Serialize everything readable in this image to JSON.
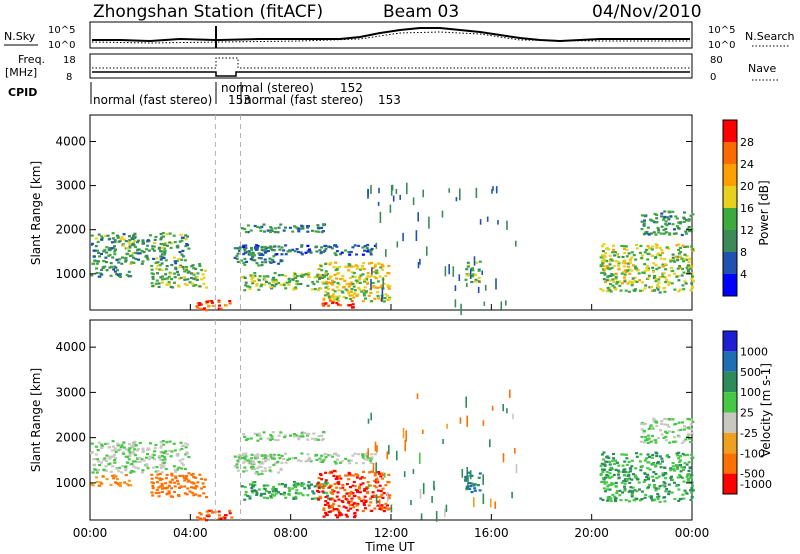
{
  "header": {
    "station": "Zhongshan Station (fitACF)",
    "beam": "Beam 03",
    "date": "04/Nov/2010"
  },
  "top_panels": {
    "nsky_label": "N.Sky",
    "nsky_ticks": [
      "10^5",
      "10^0"
    ],
    "nsearch_label": "N.Search",
    "nsearch_ticks": [
      "10^5",
      "10^0"
    ],
    "freq_label": "Freq.",
    "freq_unit": "[MHz]",
    "freq_ticks": [
      "18",
      "8"
    ],
    "nave_label": "Nave",
    "nave_ticks": [
      "80",
      "0"
    ],
    "cpid_label": "CPID",
    "cpid_modes": [
      {
        "name": "normal (fast stereo)",
        "id": "153"
      },
      {
        "name": "normal (stereo)",
        "id": "152"
      },
      {
        "name": "normal (fast stereo)",
        "id": "153"
      }
    ]
  },
  "axis": {
    "ylabel": "Slant Range [km]",
    "xlabel": "Time UT",
    "yticks": [
      "1000",
      "2000",
      "3000",
      "4000"
    ],
    "xticks": [
      "00:00",
      "04:00",
      "08:00",
      "12:00",
      "16:00",
      "20:00",
      "00:00"
    ]
  },
  "power_scale": {
    "label": "Power [dB]",
    "ticks": [
      "4",
      "8",
      "12",
      "16",
      "20",
      "24",
      "28"
    ],
    "colors": [
      "#0000ff",
      "#2050b0",
      "#3c8a5a",
      "#3caa3c",
      "#e6d21e",
      "#ffa000",
      "#ff6a00",
      "#ff0000"
    ]
  },
  "velocity_scale": {
    "label": "Velocity [m s-1]",
    "ticks": [
      "1000",
      "500",
      "100",
      "25",
      "-25",
      "-100",
      "-500",
      "-1000"
    ],
    "colors": [
      "#1e1ed2",
      "#1e6eb4",
      "#2d8c5a",
      "#46c846",
      "#c8c8c0",
      "#f0a020",
      "#ff7000",
      "#ff0000"
    ]
  },
  "chart_data": {
    "type": "heatmap",
    "title": "Zhongshan Station (fitACF)",
    "xlabel": "Time UT",
    "ylabel": "Slant Range [km]",
    "x_range_hours": [
      0,
      24
    ],
    "y_range_km": [
      180,
      4600
    ],
    "mode_change_hours": [
      5.0,
      6.0
    ],
    "echo_regions": [
      {
        "t0": 0.0,
        "t1": 3.9,
        "r0": 1250,
        "r1": 1950,
        "power": 12,
        "velocity": 25
      },
      {
        "t0": 0.0,
        "t1": 1.6,
        "r0": 950,
        "r1": 1200,
        "power": 9,
        "velocity": -100
      },
      {
        "t0": 2.4,
        "t1": 4.6,
        "r0": 700,
        "r1": 1250,
        "power": 14,
        "velocity": -250
      },
      {
        "t0": 4.0,
        "t1": 5.6,
        "r0": 200,
        "r1": 420,
        "power": 28,
        "velocity": -500
      },
      {
        "t0": 5.7,
        "t1": 7.6,
        "r0": 1200,
        "r1": 1650,
        "power": 10,
        "velocity": 25
      },
      {
        "t0": 6.0,
        "t1": 11.4,
        "r0": 1450,
        "r1": 1680,
        "power": 8,
        "velocity": 25
      },
      {
        "t0": 6.0,
        "t1": 9.4,
        "r0": 1950,
        "r1": 2150,
        "power": 10,
        "velocity": 25
      },
      {
        "t0": 6.0,
        "t1": 9.6,
        "r0": 650,
        "r1": 1050,
        "power": 14,
        "velocity": 100
      },
      {
        "t0": 9.0,
        "t1": 11.9,
        "r0": 400,
        "r1": 1300,
        "power": 18,
        "velocity": -500
      },
      {
        "t0": 9.2,
        "t1": 10.6,
        "r0": 250,
        "r1": 420,
        "power": 30,
        "velocity": -1000
      },
      {
        "t0": 14.9,
        "t1": 15.5,
        "r0": 800,
        "r1": 1300,
        "power": 14,
        "velocity": 500
      },
      {
        "t0": 20.3,
        "t1": 24.0,
        "r0": 600,
        "r1": 1700,
        "power": 16,
        "velocity": 100
      },
      {
        "t0": 21.9,
        "t1": 24.0,
        "r0": 1900,
        "r1": 2450,
        "power": 11,
        "velocity": 25
      }
    ],
    "velocity_ticks": [
      1000,
      500,
      100,
      25,
      -25,
      -100,
      -500,
      -1000
    ],
    "power_ticks": [
      4,
      8,
      12,
      16,
      20,
      24,
      28
    ],
    "grid": false,
    "legend": "right"
  }
}
